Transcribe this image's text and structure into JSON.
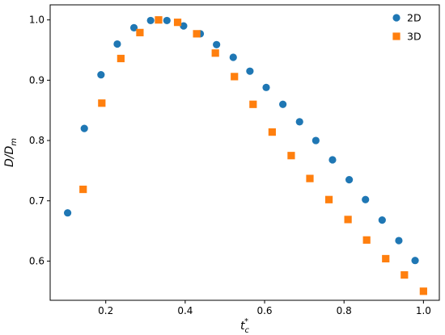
{
  "chart_data": {
    "type": "scatter",
    "title": "",
    "xlabel": {
      "base": "t",
      "sub": "c",
      "sup": "*"
    },
    "ylabel": {
      "base": "D/D",
      "sub": "m"
    },
    "xlim": [
      0.06,
      1.04
    ],
    "ylim": [
      0.535,
      1.025
    ],
    "xticks": [
      "0.2",
      "0.4",
      "0.6",
      "0.8",
      "1.0"
    ],
    "xtick_values": [
      0.2,
      0.4,
      0.6,
      0.8,
      1.0
    ],
    "yticks": [
      "0.6",
      "0.7",
      "0.8",
      "0.9",
      "1.0"
    ],
    "ytick_values": [
      0.6,
      0.7,
      0.8,
      0.9,
      1.0
    ],
    "legend_position": "top-right",
    "grid": false,
    "series": [
      {
        "name": "2D",
        "marker": "circle",
        "color": "#1f77b4",
        "x": [
          0.104,
          0.146,
          0.188,
          0.229,
          0.271,
          0.313,
          0.354,
          0.396,
          0.438,
          0.479,
          0.521,
          0.563,
          0.604,
          0.646,
          0.688,
          0.729,
          0.771,
          0.813,
          0.854,
          0.896,
          0.938,
          0.979
        ],
        "y": [
          0.68,
          0.82,
          0.909,
          0.96,
          0.987,
          0.999,
          0.999,
          0.99,
          0.977,
          0.959,
          0.938,
          0.915,
          0.888,
          0.86,
          0.831,
          0.8,
          0.768,
          0.735,
          0.702,
          0.668,
          0.634,
          0.601
        ]
      },
      {
        "name": "3D",
        "marker": "square",
        "color": "#ff7f0e",
        "x": [
          0.143,
          0.19,
          0.238,
          0.286,
          0.333,
          0.381,
          0.429,
          0.476,
          0.524,
          0.571,
          0.619,
          0.667,
          0.714,
          0.762,
          0.81,
          0.857,
          0.905,
          0.952,
          1.0
        ],
        "y": [
          0.719,
          0.862,
          0.936,
          0.979,
          1.0,
          0.996,
          0.977,
          0.945,
          0.906,
          0.86,
          0.814,
          0.775,
          0.737,
          0.702,
          0.669,
          0.635,
          0.604,
          0.577,
          0.55
        ]
      }
    ]
  }
}
